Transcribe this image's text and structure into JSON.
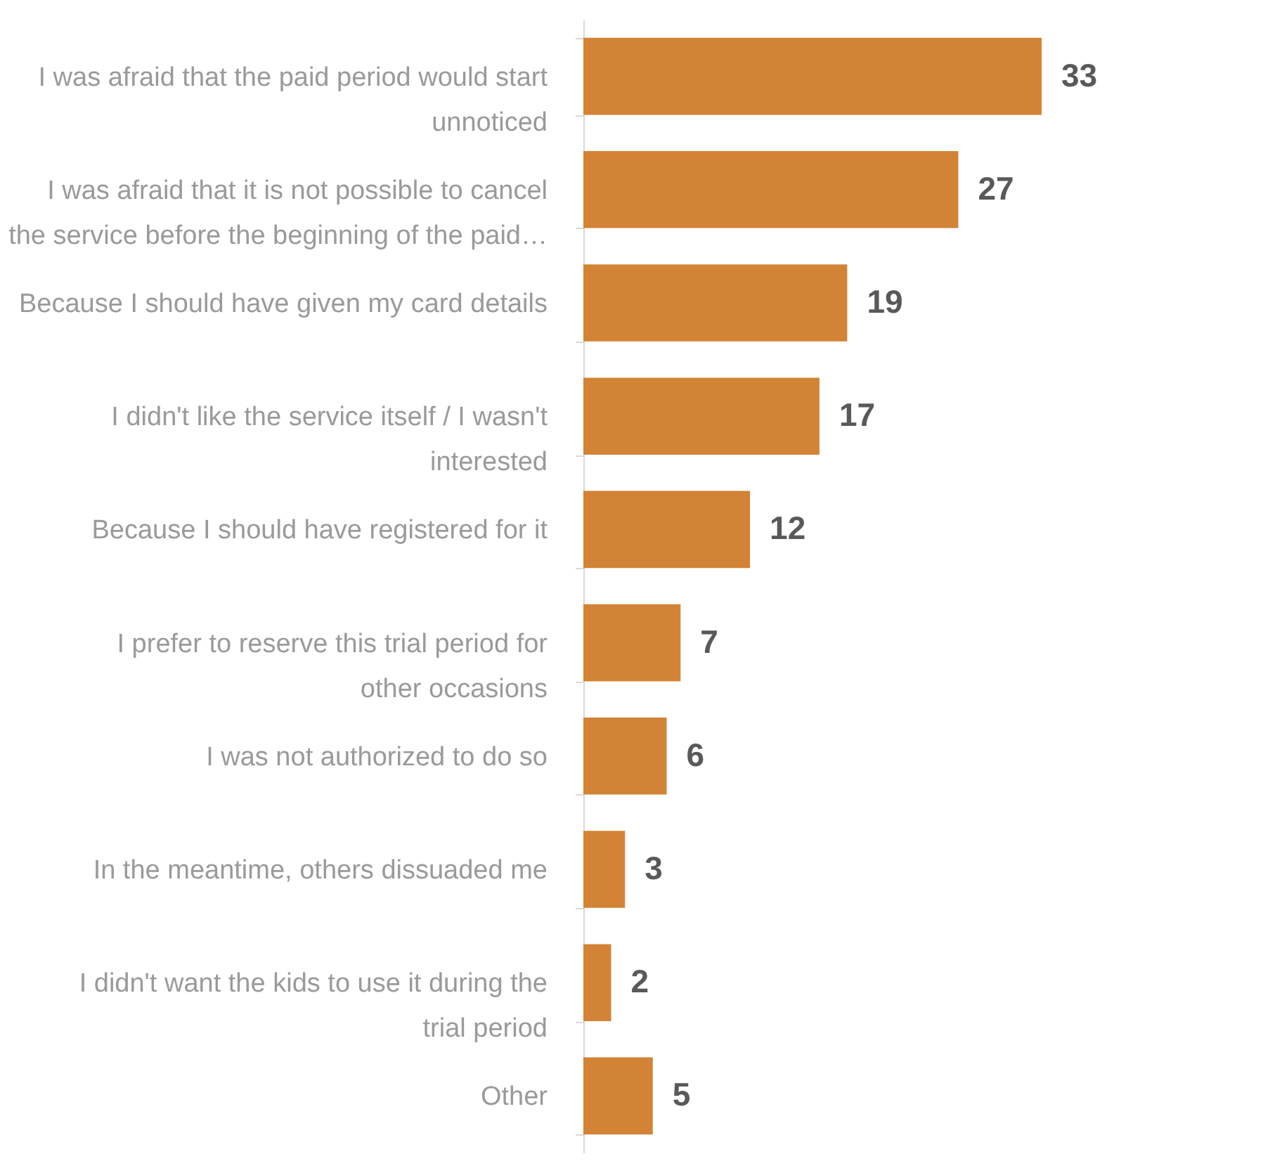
{
  "chart_data": {
    "type": "bar",
    "orientation": "horizontal",
    "data_labels": true,
    "categories": [
      "I was afraid that the paid period would start unnoticed",
      "I was afraid that it is not possible to cancel the service before the beginning of the paid…",
      "Because I should have given my card details",
      "I didn't like the service itself / I wasn't interested",
      "Because I should have registered for it",
      "I prefer to reserve this trial period for other occasions",
      "I was not authorized to do so",
      "In the meantime, others dissuaded me",
      "I didn't want the kids to use it during the trial period",
      "Other"
    ],
    "values": [
      33,
      27,
      19,
      17,
      12,
      7,
      6,
      3,
      2,
      5
    ],
    "color": "#d38335"
  }
}
